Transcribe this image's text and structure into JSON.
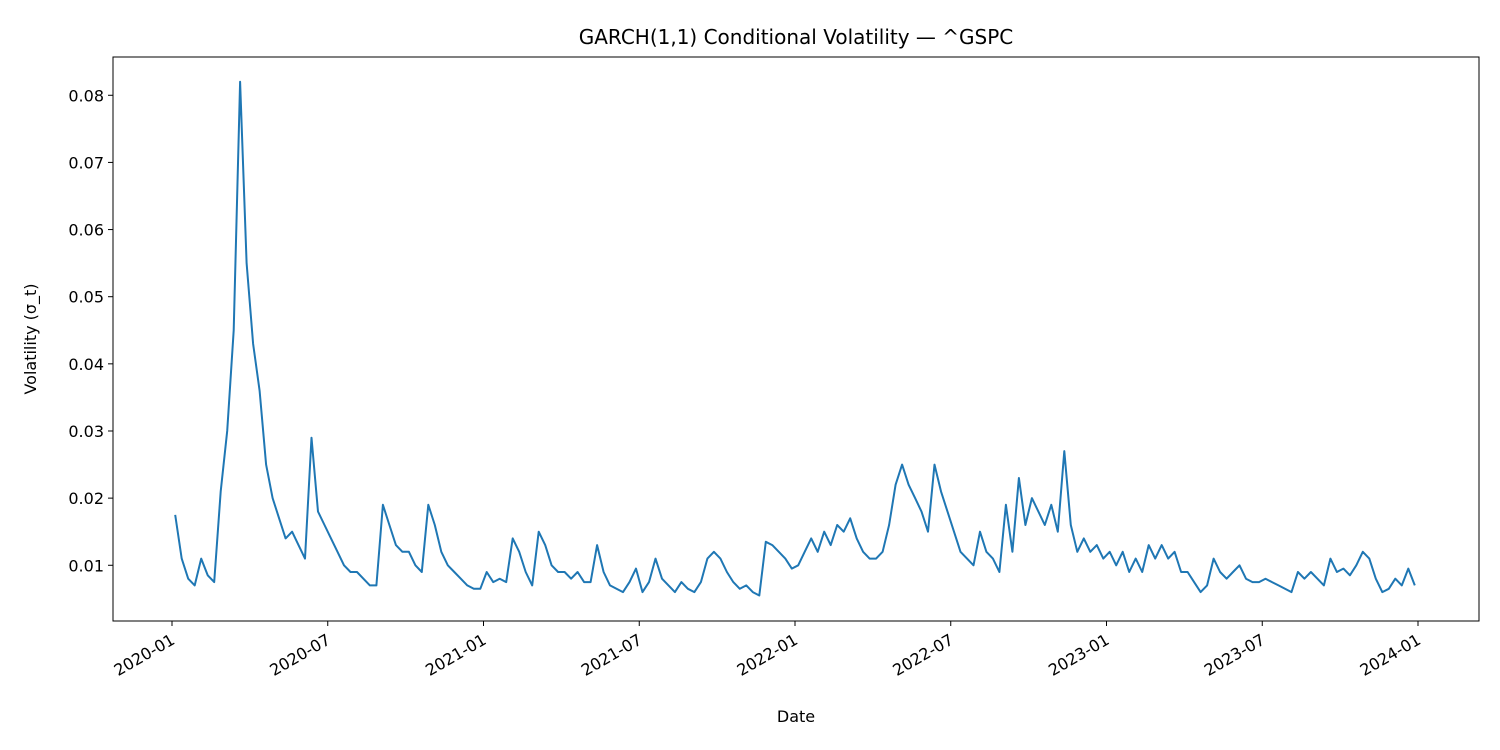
{
  "chart_data": {
    "type": "line",
    "title": "GARCH(1,1) Conditional Volatility — ^GSPC",
    "x_label": "Date",
    "y_label": "Volatility (σ_t)",
    "x": [
      "2020-01",
      "2020-01",
      "2020-01",
      "2020-01",
      "2020-02",
      "2020-02",
      "2020-02",
      "2020-02",
      "2020-03",
      "2020-03",
      "2020-03",
      "2020-03",
      "2020-04",
      "2020-04",
      "2020-04",
      "2020-04",
      "2020-05",
      "2020-05",
      "2020-05",
      "2020-05",
      "2020-06",
      "2020-06",
      "2020-06",
      "2020-06",
      "2020-07",
      "2020-07",
      "2020-07",
      "2020-07",
      "2020-08",
      "2020-08",
      "2020-08",
      "2020-08",
      "2020-09",
      "2020-09",
      "2020-09",
      "2020-09",
      "2020-10",
      "2020-10",
      "2020-10",
      "2020-10",
      "2020-11",
      "2020-11",
      "2020-11",
      "2020-11",
      "2020-12",
      "2020-12",
      "2020-12",
      "2020-12",
      "2021-01",
      "2021-01",
      "2021-01",
      "2021-01",
      "2021-02",
      "2021-02",
      "2021-02",
      "2021-02",
      "2021-03",
      "2021-03",
      "2021-03",
      "2021-03",
      "2021-04",
      "2021-04",
      "2021-04",
      "2021-04",
      "2021-05",
      "2021-05",
      "2021-05",
      "2021-05",
      "2021-06",
      "2021-06",
      "2021-06",
      "2021-06",
      "2021-07",
      "2021-07",
      "2021-07",
      "2021-07",
      "2021-08",
      "2021-08",
      "2021-08",
      "2021-08",
      "2021-09",
      "2021-09",
      "2021-09",
      "2021-09",
      "2021-10",
      "2021-10",
      "2021-10",
      "2021-10",
      "2021-11",
      "2021-11",
      "2021-11",
      "2021-11",
      "2021-12",
      "2021-12",
      "2021-12",
      "2021-12",
      "2022-01",
      "2022-01",
      "2022-01",
      "2022-01",
      "2022-02",
      "2022-02",
      "2022-02",
      "2022-02",
      "2022-03",
      "2022-03",
      "2022-03",
      "2022-03",
      "2022-04",
      "2022-04",
      "2022-04",
      "2022-04",
      "2022-05",
      "2022-05",
      "2022-05",
      "2022-05",
      "2022-06",
      "2022-06",
      "2022-06",
      "2022-06",
      "2022-07",
      "2022-07",
      "2022-07",
      "2022-07",
      "2022-08",
      "2022-08",
      "2022-08",
      "2022-08",
      "2022-09",
      "2022-09",
      "2022-09",
      "2022-09",
      "2022-10",
      "2022-10",
      "2022-10",
      "2022-10",
      "2022-11",
      "2022-11",
      "2022-11",
      "2022-11",
      "2022-12",
      "2022-12",
      "2022-12",
      "2022-12",
      "2023-01",
      "2023-01",
      "2023-01",
      "2023-01",
      "2023-02",
      "2023-02",
      "2023-02",
      "2023-02",
      "2023-03",
      "2023-03",
      "2023-03",
      "2023-03",
      "2023-04",
      "2023-04",
      "2023-04",
      "2023-04",
      "2023-05",
      "2023-05",
      "2023-05",
      "2023-05",
      "2023-06",
      "2023-06",
      "2023-06",
      "2023-06",
      "2023-07",
      "2023-07",
      "2023-07",
      "2023-07",
      "2023-08",
      "2023-08",
      "2023-08",
      "2023-08",
      "2023-09",
      "2023-09",
      "2023-09",
      "2023-09",
      "2023-10",
      "2023-10",
      "2023-10",
      "2023-10",
      "2023-11",
      "2023-11",
      "2023-11",
      "2023-11",
      "2023-12",
      "2023-12",
      "2023-12",
      "2023-12"
    ],
    "series": [
      {
        "name": "σ_t",
        "color": "#1f77b4",
        "values": [
          0.0175,
          0.011,
          0.008,
          0.007,
          0.011,
          0.0085,
          0.0075,
          0.021,
          0.03,
          0.045,
          0.082,
          0.055,
          0.043,
          0.036,
          0.025,
          0.02,
          0.017,
          0.014,
          0.015,
          0.013,
          0.011,
          0.029,
          0.018,
          0.016,
          0.014,
          0.012,
          0.01,
          0.009,
          0.009,
          0.008,
          0.007,
          0.007,
          0.019,
          0.016,
          0.013,
          0.012,
          0.012,
          0.01,
          0.009,
          0.019,
          0.016,
          0.012,
          0.01,
          0.009,
          0.008,
          0.007,
          0.0065,
          0.0065,
          0.009,
          0.0075,
          0.008,
          0.0075,
          0.014,
          0.012,
          0.009,
          0.007,
          0.015,
          0.013,
          0.01,
          0.009,
          0.009,
          0.008,
          0.009,
          0.0075,
          0.0075,
          0.013,
          0.009,
          0.007,
          0.0065,
          0.006,
          0.0075,
          0.0095,
          0.006,
          0.0075,
          0.011,
          0.008,
          0.007,
          0.006,
          0.0075,
          0.0065,
          0.006,
          0.0075,
          0.011,
          0.012,
          0.011,
          0.009,
          0.0075,
          0.0065,
          0.007,
          0.006,
          0.0055,
          0.0135,
          0.013,
          0.012,
          0.011,
          0.0095,
          0.01,
          0.012,
          0.014,
          0.012,
          0.015,
          0.013,
          0.016,
          0.015,
          0.017,
          0.014,
          0.012,
          0.011,
          0.011,
          0.012,
          0.016,
          0.022,
          0.025,
          0.022,
          0.02,
          0.018,
          0.015,
          0.025,
          0.021,
          0.018,
          0.015,
          0.012,
          0.011,
          0.01,
          0.015,
          0.012,
          0.011,
          0.009,
          0.019,
          0.012,
          0.023,
          0.016,
          0.02,
          0.018,
          0.016,
          0.019,
          0.015,
          0.027,
          0.016,
          0.012,
          0.014,
          0.012,
          0.013,
          0.011,
          0.012,
          0.01,
          0.012,
          0.009,
          0.011,
          0.009,
          0.013,
          0.011,
          0.013,
          0.011,
          0.012,
          0.009,
          0.009,
          0.0075,
          0.006,
          0.007,
          0.011,
          0.009,
          0.008,
          0.009,
          0.01,
          0.008,
          0.0075,
          0.0075,
          0.008,
          0.0075,
          0.007,
          0.0065,
          0.006,
          0.009,
          0.008,
          0.009,
          0.008,
          0.007,
          0.011,
          0.009,
          0.0095,
          0.0085,
          0.01,
          0.012,
          0.011,
          0.008,
          0.006,
          0.0065,
          0.008,
          0.007,
          0.0095,
          0.007
        ]
      }
    ],
    "xticks": [
      "2020-01",
      "2020-07",
      "2021-01",
      "2021-07",
      "2022-01",
      "2022-07",
      "2023-01",
      "2023-07",
      "2024-01"
    ],
    "ylim": [
      0.0017,
      0.0857
    ],
    "yticks": [
      0.01,
      0.02,
      0.03,
      0.04,
      0.05,
      0.06,
      0.07,
      0.08
    ],
    "grid": false
  }
}
